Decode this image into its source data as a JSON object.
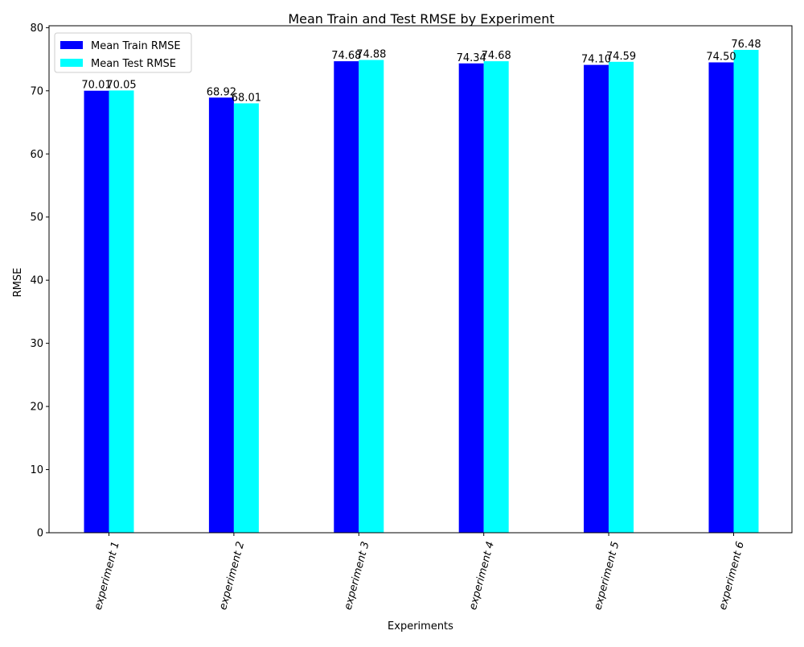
{
  "chart_data": {
    "type": "bar",
    "title": "Mean Train and Test RMSE by Experiment",
    "xlabel": "Experiments",
    "ylabel": "RMSE",
    "categories": [
      "experiment 1",
      "experiment 2",
      "experiment 3",
      "experiment 4",
      "experiment 5",
      "experiment 6"
    ],
    "series": [
      {
        "name": "Mean Train RMSE",
        "color": "#0000ff",
        "values": [
          70.01,
          68.92,
          74.68,
          74.34,
          74.1,
          74.5
        ],
        "labels": [
          "70.01",
          "68.92",
          "74.68",
          "74.34",
          "74.10",
          "74.50"
        ]
      },
      {
        "name": "Mean Test RMSE",
        "color": "#00ffff",
        "values": [
          70.05,
          68.01,
          74.88,
          74.68,
          74.59,
          76.48
        ],
        "labels": [
          "70.05",
          "68.01",
          "74.88",
          "74.68",
          "74.59",
          "76.48"
        ]
      }
    ],
    "ylim": [
      0,
      80.3
    ],
    "yticks": [
      0,
      10,
      20,
      30,
      40,
      50,
      60,
      70,
      80
    ],
    "ytick_labels": [
      "0",
      "10",
      "20",
      "30",
      "40",
      "50",
      "60",
      "70",
      "80"
    ],
    "grid": false,
    "legend_position": "top-left",
    "xtick_rotation": "75 degrees, italic"
  }
}
